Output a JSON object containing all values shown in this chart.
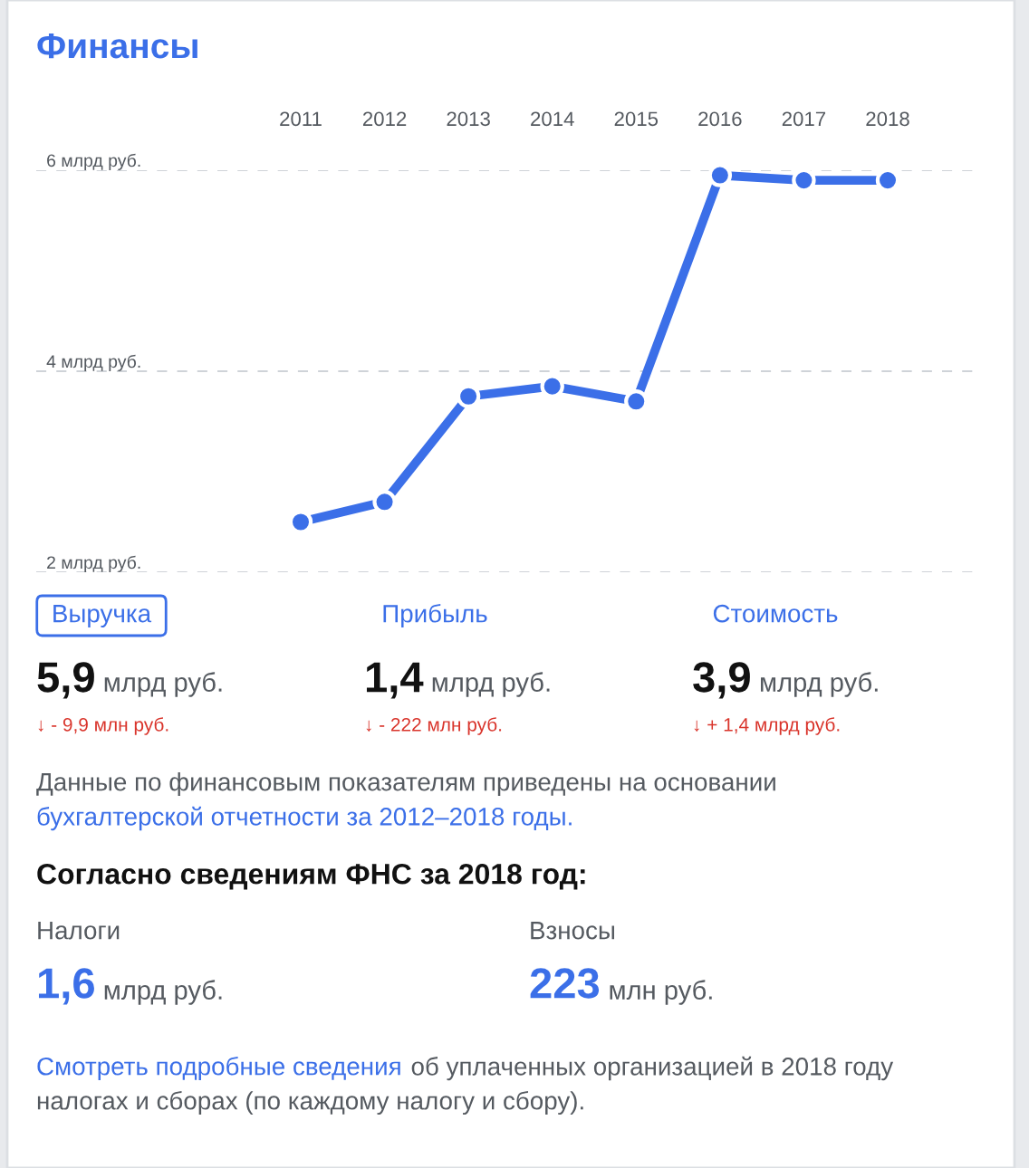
{
  "chart_data": {
    "type": "line",
    "title": "Финансы",
    "categories": [
      "2011",
      "2012",
      "2013",
      "2014",
      "2015",
      "2016",
      "2017",
      "2018"
    ],
    "series": [
      {
        "color": "#3b6fe8",
        "values": [
          2.5,
          2.7,
          3.75,
          3.85,
          3.7,
          5.95,
          5.9,
          5.9
        ]
      }
    ],
    "ylim": [
      2,
      6
    ],
    "yticks": [
      {
        "value": 2,
        "label": "2 млрд руб."
      },
      {
        "value": 4,
        "label": "4 млрд руб."
      },
      {
        "value": 6,
        "label": "6 млрд руб."
      }
    ],
    "grid": "y",
    "marker": "circle",
    "line_style": "solid",
    "annotations": [
      "Выручка",
      "Прибыль",
      "Стоимость",
      "5,9",
      "млрд руб.",
      "1,4",
      "млрд руб.",
      "3,9",
      "млрд руб.",
      "↓ - 9,9 млн руб.",
      "↓ - 222 млн руб.",
      "↓ + 1,4 млрд руб.",
      "Данные по финансовым показателям приведены на основании",
      "бухгалтерской отчетности за 2012–2018 годы.",
      "Согласно сведениям ФНС за 2018 год:",
      "Налоги",
      "Взносы",
      "1,6",
      "млрд руб.",
      "223",
      "млн руб.",
      "Смотреть подробные сведения",
      "об уплаченных организацией в 2018 году",
      "налогах и сборах (по каждому налогу и сбору)."
    ]
  }
}
